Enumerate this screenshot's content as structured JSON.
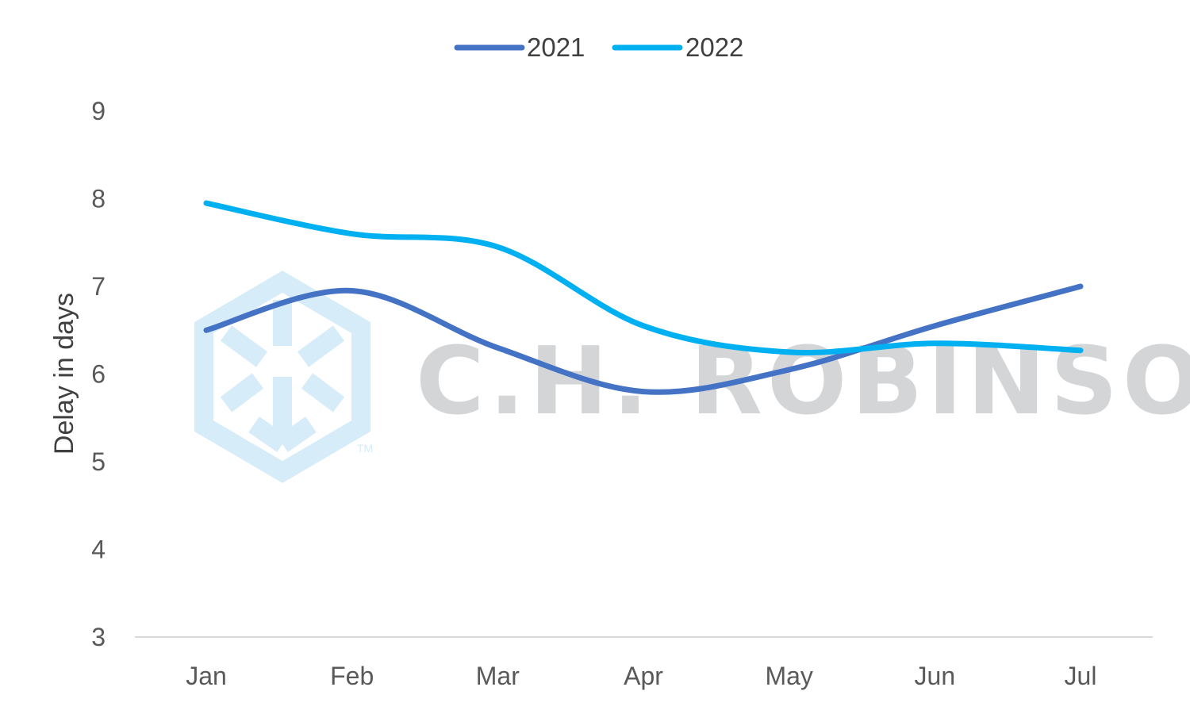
{
  "watermark": {
    "text": "C.H. ROBINSON",
    "tm": "TM",
    "logo_icon": "hexagon-cube-logo-icon"
  },
  "chart_data": {
    "type": "line",
    "categories": [
      "Jan",
      "Feb",
      "Mar",
      "Apr",
      "May",
      "Jun",
      "Jul"
    ],
    "series": [
      {
        "name": "2021",
        "color": "#4472C4",
        "values": [
          6.5,
          6.95,
          6.3,
          5.8,
          6.05,
          6.55,
          7.0
        ]
      },
      {
        "name": "2022",
        "color": "#00B0F0",
        "values": [
          7.95,
          7.6,
          7.45,
          6.55,
          6.25,
          6.35,
          6.27
        ]
      }
    ],
    "title": "",
    "xlabel": "",
    "ylabel": "Delay in days",
    "ylim": [
      3,
      9
    ],
    "yticks": [
      "3",
      "4",
      "5",
      "6",
      "7",
      "8",
      "9"
    ],
    "grid": false,
    "legend_position": "top",
    "smooth": true
  }
}
